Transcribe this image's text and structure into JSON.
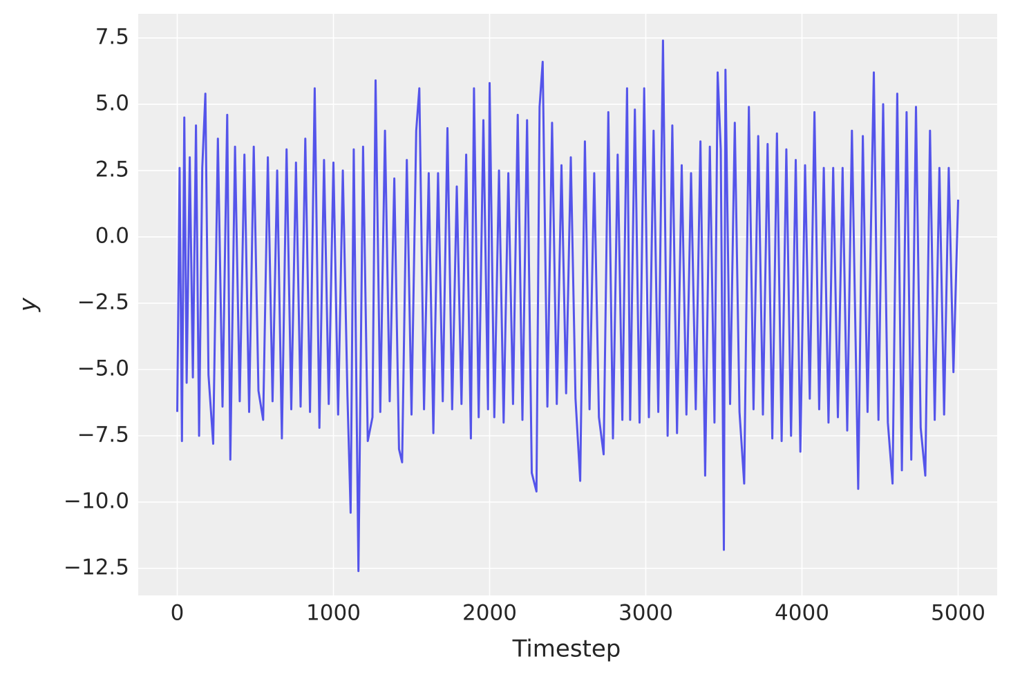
{
  "chart_data": {
    "type": "line",
    "x_label": "Timestep",
    "y_label": "y",
    "xlim": [
      -250,
      5250
    ],
    "ylim": [
      -13.52,
      8.41
    ],
    "xticks": [
      0,
      1000,
      2000,
      3000,
      4000,
      5000
    ],
    "yticks": [
      {
        "value": -12.5,
        "label": "−12.5"
      },
      {
        "value": -10,
        "label": "−10.0"
      },
      {
        "value": -7.5,
        "label": "−7.5"
      },
      {
        "value": -5,
        "label": "−5.0"
      },
      {
        "value": -2.5,
        "label": "−2.5"
      },
      {
        "value": 0,
        "label": "0.0"
      },
      2.5,
      {
        "value": 5,
        "label": "5.0"
      },
      7.5
    ],
    "grid": true,
    "series": [
      {
        "color": "#4b4be9",
        "x": [
          0,
          15,
          30,
          45,
          60,
          80,
          100,
          120,
          140,
          160,
          180,
          200,
          230,
          260,
          290,
          320,
          340,
          370,
          400,
          430,
          460,
          490,
          520,
          550,
          580,
          610,
          640,
          670,
          700,
          730,
          760,
          790,
          820,
          850,
          880,
          910,
          940,
          970,
          1000,
          1030,
          1060,
          1090,
          1110,
          1130,
          1160,
          1190,
          1220,
          1250,
          1270,
          1300,
          1330,
          1360,
          1390,
          1420,
          1440,
          1470,
          1500,
          1530,
          1550,
          1580,
          1610,
          1640,
          1670,
          1700,
          1730,
          1760,
          1790,
          1820,
          1850,
          1880,
          1900,
          1930,
          1960,
          1990,
          2000,
          2030,
          2060,
          2090,
          2120,
          2150,
          2180,
          2210,
          2240,
          2270,
          2300,
          2320,
          2340,
          2370,
          2400,
          2430,
          2460,
          2490,
          2520,
          2550,
          2580,
          2610,
          2640,
          2670,
          2700,
          2730,
          2760,
          2790,
          2820,
          2850,
          2880,
          2900,
          2930,
          2960,
          2990,
          3020,
          3050,
          3080,
          3110,
          3140,
          3170,
          3200,
          3230,
          3260,
          3290,
          3320,
          3350,
          3380,
          3410,
          3440,
          3460,
          3480,
          3500,
          3510,
          3540,
          3570,
          3600,
          3630,
          3660,
          3690,
          3720,
          3750,
          3780,
          3810,
          3840,
          3870,
          3900,
          3930,
          3960,
          3990,
          4020,
          4050,
          4080,
          4110,
          4140,
          4170,
          4200,
          4230,
          4260,
          4290,
          4320,
          4360,
          4390,
          4420,
          4460,
          4490,
          4520,
          4550,
          4580,
          4610,
          4640,
          4670,
          4700,
          4730,
          4760,
          4790,
          4820,
          4850,
          4880,
          4910,
          4940,
          4970,
          5000
        ],
        "values": [
          -6.6,
          2.6,
          -7.7,
          4.5,
          -5.5,
          3.0,
          -5.3,
          4.2,
          -7.5,
          2.6,
          5.4,
          -5.2,
          -7.8,
          3.7,
          -6.4,
          4.6,
          -8.4,
          3.4,
          -6.2,
          3.1,
          -6.6,
          3.4,
          -5.8,
          -6.9,
          3.0,
          -6.2,
          2.5,
          -7.6,
          3.3,
          -6.5,
          2.8,
          -6.4,
          3.7,
          -6.6,
          5.6,
          -7.2,
          2.9,
          -6.3,
          2.8,
          -6.7,
          2.5,
          -6.0,
          -10.4,
          3.3,
          -12.6,
          3.4,
          -7.7,
          -6.8,
          5.9,
          -6.6,
          4.0,
          -6.2,
          2.2,
          -8.0,
          -8.5,
          2.9,
          -6.7,
          4.0,
          5.6,
          -6.5,
          2.4,
          -7.4,
          2.4,
          -6.2,
          4.1,
          -6.5,
          1.9,
          -6.3,
          3.1,
          -7.6,
          5.6,
          -6.8,
          4.4,
          -6.5,
          5.8,
          -6.8,
          2.5,
          -7.0,
          2.4,
          -6.3,
          4.6,
          -6.9,
          4.4,
          -8.9,
          -9.6,
          4.9,
          6.6,
          -6.4,
          4.3,
          -6.3,
          2.7,
          -5.9,
          3.0,
          -6.1,
          -9.2,
          3.6,
          -6.5,
          2.4,
          -6.8,
          -8.2,
          4.7,
          -7.6,
          3.1,
          -6.9,
          5.6,
          -6.9,
          4.8,
          -7.0,
          5.6,
          -6.8,
          4.0,
          -6.6,
          7.4,
          -7.5,
          4.2,
          -7.4,
          2.7,
          -6.7,
          2.4,
          -6.5,
          3.6,
          -9.0,
          3.4,
          -7.0,
          6.2,
          3.3,
          -11.8,
          6.3,
          -6.3,
          4.3,
          -6.6,
          -9.3,
          4.9,
          -6.5,
          3.8,
          -6.7,
          3.5,
          -7.6,
          3.9,
          -7.7,
          3.3,
          -7.5,
          2.9,
          -8.1,
          2.7,
          -6.1,
          4.7,
          -6.5,
          2.6,
          -7.0,
          2.6,
          -6.8,
          2.6,
          -7.3,
          4.0,
          -9.5,
          3.8,
          -6.6,
          6.2,
          -6.9,
          5.0,
          -7.0,
          -9.3,
          5.4,
          -8.8,
          4.7,
          -8.4,
          4.9,
          -7.2,
          -9.0,
          4.0,
          -6.9,
          2.6,
          -6.7,
          2.6,
          -5.1,
          1.4
        ]
      }
    ]
  }
}
